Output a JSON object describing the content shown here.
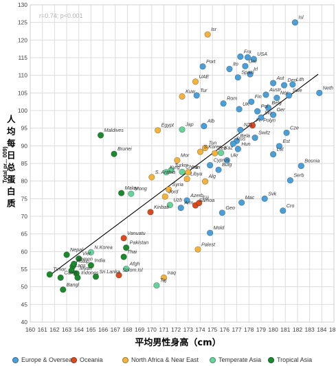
{
  "chart_data": {
    "type": "scatter",
    "xlabel": "平均男性身高（cm）",
    "ylabel_cjk": "人均每日总蛋白质",
    "ylabel_latin": "Total pr... 009)",
    "annotation": "r=0.74; p<0.001",
    "xlim": [
      160,
      185
    ],
    "ylim": [
      40,
      130
    ],
    "xticks": [
      160,
      161,
      162,
      163,
      164,
      165,
      166,
      167,
      168,
      169,
      170,
      171,
      172,
      173,
      174,
      175,
      176,
      177,
      178,
      179,
      180,
      181,
      182,
      183,
      184,
      185
    ],
    "yticks": [
      40,
      45,
      50,
      55,
      60,
      65,
      70,
      75,
      80,
      85,
      90,
      95,
      100,
      105,
      110,
      115,
      120,
      125,
      130
    ],
    "grid": true,
    "trendline": {
      "x": [
        161.5,
        183.7
      ],
      "y": [
        53.0,
        110.3
      ]
    },
    "legend_position": "bottom",
    "series": [
      {
        "name": "Europe & Overseas",
        "color": "#4a9fd8",
        "points": [
          {
            "x": 181.8,
            "y": 125,
            "label": "Isl"
          },
          {
            "x": 176.4,
            "y": 111.8,
            "label": "Ito"
          },
          {
            "x": 177.3,
            "y": 115.3,
            "label": "Fra"
          },
          {
            "x": 177.9,
            "y": 115.1,
            "label": ""
          },
          {
            "x": 178.4,
            "y": 114.6,
            "label": "USA"
          },
          {
            "x": 177.7,
            "y": 112.6,
            "label": "Gre"
          },
          {
            "x": 178.1,
            "y": 110.3,
            "label": "Irl"
          },
          {
            "x": 177.1,
            "y": 109.4,
            "label": "Spain"
          },
          {
            "x": 174.2,
            "y": 112.5,
            "label": "Port"
          },
          {
            "x": 180.0,
            "y": 107.8,
            "label": "Aut"
          },
          {
            "x": 180.9,
            "y": 107.2,
            "label": "Den"
          },
          {
            "x": 181.6,
            "y": 107.4,
            "label": "Lith"
          },
          {
            "x": 183.8,
            "y": 105.0,
            "label": "Neth"
          },
          {
            "x": 181.3,
            "y": 104.3,
            "label": "Swe"
          },
          {
            "x": 179.4,
            "y": 104.5,
            "label": "Austr"
          },
          {
            "x": 180.3,
            "y": 103.6,
            "label": "Nor"
          },
          {
            "x": 178.2,
            "y": 102.5,
            "label": "Fin"
          },
          {
            "x": 179.6,
            "y": 100.8,
            "label": "Belg"
          },
          {
            "x": 173.7,
            "y": 104.3,
            "label": "Tur"
          },
          {
            "x": 175.9,
            "y": 102.0,
            "label": "Rom"
          },
          {
            "x": 177.2,
            "y": 100.4,
            "label": "UK"
          },
          {
            "x": 178.7,
            "y": 99.8,
            "label": "Pol"
          },
          {
            "x": 180.0,
            "y": 98.8,
            "label": "Ger"
          },
          {
            "x": 179.0,
            "y": 98.0,
            "label": "Slo"
          },
          {
            "x": 174.3,
            "y": 95.6,
            "label": "Alb"
          },
          {
            "x": 177.3,
            "y": 94.5,
            "label": "NZL"
          },
          {
            "x": 181.1,
            "y": 93.7,
            "label": "Cze"
          },
          {
            "x": 177.0,
            "y": 91.4,
            "label": "Bela"
          },
          {
            "x": 178.5,
            "y": 92.3,
            "label": "Switz"
          },
          {
            "x": 176.7,
            "y": 90.6,
            "label": "Rus"
          },
          {
            "x": 177.1,
            "y": 89.1,
            "label": "Hun"
          },
          {
            "x": 180.5,
            "y": 89.9,
            "label": "Est"
          },
          {
            "x": 180.0,
            "y": 87.6,
            "label": "Lat"
          },
          {
            "x": 176.2,
            "y": 85.9,
            "label": "Ukr"
          },
          {
            "x": 175.5,
            "y": 83.2,
            "label": "Bulg"
          },
          {
            "x": 174.8,
            "y": 84.5,
            "label": "Cyprus"
          },
          {
            "x": 182.3,
            "y": 84.3,
            "label": "Bosnia"
          },
          {
            "x": 181.4,
            "y": 80.2,
            "label": "Serb"
          },
          {
            "x": 177.4,
            "y": 73.9,
            "label": "Mac"
          },
          {
            "x": 179.3,
            "y": 75.0,
            "label": "Svk"
          },
          {
            "x": 172.9,
            "y": 74.5,
            "label": "Azerb"
          },
          {
            "x": 180.8,
            "y": 71.6,
            "label": "Cro"
          },
          {
            "x": 175.8,
            "y": 71.0,
            "label": "Geo"
          },
          {
            "x": 172.4,
            "y": 72.4,
            "label": "Arm"
          },
          {
            "x": 174.8,
            "y": 65.3,
            "label": "Mold"
          }
        ]
      },
      {
        "name": "Oceania",
        "color": "#d94a1e",
        "points": [
          {
            "x": 178.3,
            "y": 95.8,
            "label": "Fr. Polyn"
          },
          {
            "x": 173.6,
            "y": 73.1,
            "label": "Samoa"
          },
          {
            "x": 173.9,
            "y": 73.8,
            "label": "Fiji"
          },
          {
            "x": 169.9,
            "y": 71.2,
            "label": "Kiribati"
          },
          {
            "x": 167.7,
            "y": 63.8,
            "label": "Vanuatu"
          },
          {
            "x": 167.3,
            "y": 53.3,
            "label": "Solom.Isl"
          }
        ]
      },
      {
        "name": "North Africa & Near East",
        "color": "#f2b23d",
        "points": [
          {
            "x": 174.6,
            "y": 121.6,
            "label": "Isr"
          },
          {
            "x": 173.6,
            "y": 108.2,
            "label": "UAE"
          },
          {
            "x": 172.5,
            "y": 104.0,
            "label": "Kuw"
          },
          {
            "x": 170.5,
            "y": 94.4,
            "label": "Egypt"
          },
          {
            "x": 174.4,
            "y": 89.4,
            "label": "Tun"
          },
          {
            "x": 174.0,
            "y": 88.3,
            "label": "S.Korea"
          },
          {
            "x": 172.1,
            "y": 85.9,
            "label": "Mor"
          },
          {
            "x": 173.0,
            "y": 82.5,
            "label": "Iran"
          },
          {
            "x": 171.4,
            "y": 77.6,
            "label": "Syria"
          },
          {
            "x": 170.0,
            "y": 81.1,
            "label": "S. Arabia"
          },
          {
            "x": 172.9,
            "y": 80.6,
            "label": "Libya"
          },
          {
            "x": 174.4,
            "y": 79.9,
            "label": "Alg"
          },
          {
            "x": 171.1,
            "y": 75.6,
            "label": "Jord"
          },
          {
            "x": 175.2,
            "y": 87.9,
            "label": "Leb"
          },
          {
            "x": 173.8,
            "y": 60.6,
            "label": "Palest"
          },
          {
            "x": 171.0,
            "y": 52.6,
            "label": "Iraq"
          }
        ]
      },
      {
        "name": "Temperate Asia",
        "color": "#66d49a",
        "points": [
          {
            "x": 172.5,
            "y": 94.6,
            "label": "Jap"
          },
          {
            "x": 175.7,
            "y": 88.0,
            "label": "Kaz"
          },
          {
            "x": 171.2,
            "y": 82.5,
            "label": "Kyrg"
          },
          {
            "x": 171.6,
            "y": 83.1,
            "label": "Turkm"
          },
          {
            "x": 172.5,
            "y": 82.6,
            "label": "China"
          },
          {
            "x": 168.3,
            "y": 76.4,
            "label": "Mong"
          },
          {
            "x": 171.5,
            "y": 73.2,
            "label": "Uzb"
          },
          {
            "x": 165.0,
            "y": 59.8,
            "label": "N.Korea"
          },
          {
            "x": 167.9,
            "y": 55.1,
            "label": "Afgh"
          },
          {
            "x": 170.4,
            "y": 50.4,
            "label": "Taj"
          }
        ]
      },
      {
        "name": "Tropical Asia",
        "color": "#1a8a2c",
        "points": [
          {
            "x": 165.8,
            "y": 93.0,
            "label": "Maldives"
          },
          {
            "x": 166.9,
            "y": 87.7,
            "label": "Brunei"
          },
          {
            "x": 167.5,
            "y": 76.6,
            "label": "Malay"
          },
          {
            "x": 167.9,
            "y": 61.1,
            "label": "Pakistan"
          },
          {
            "x": 163.0,
            "y": 59.1,
            "label": "Nepal"
          },
          {
            "x": 164.0,
            "y": 58.0,
            "label": "Viet"
          },
          {
            "x": 167.7,
            "y": 58.5,
            "label": "Thai"
          },
          {
            "x": 163.5,
            "y": 55.8,
            "label": "Phillip"
          },
          {
            "x": 165.0,
            "y": 56.1,
            "label": "India"
          },
          {
            "x": 163.6,
            "y": 56.5,
            "label": "Yemen"
          },
          {
            "x": 163.4,
            "y": 54.6,
            "label": "Laos"
          },
          {
            "x": 163.8,
            "y": 53.8,
            "label": "Myan"
          },
          {
            "x": 161.6,
            "y": 53.5,
            "label": "Timor"
          },
          {
            "x": 162.5,
            "y": 52.6,
            "label": "Camb"
          },
          {
            "x": 163.9,
            "y": 52.6,
            "label": "Indones"
          },
          {
            "x": 165.4,
            "y": 52.9,
            "label": "Sri Lanka"
          },
          {
            "x": 162.7,
            "y": 49.2,
            "label": "Bangl"
          }
        ]
      }
    ]
  }
}
